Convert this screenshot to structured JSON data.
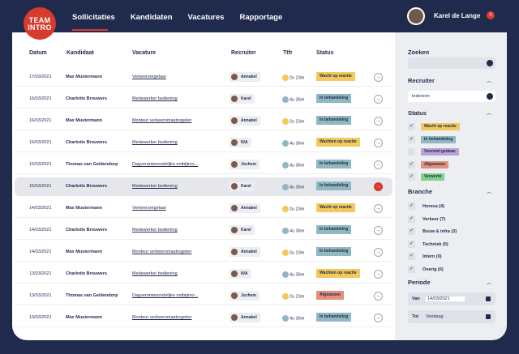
{
  "brand": {
    "line1": "TEAM",
    "line2": "INTRO"
  },
  "nav": {
    "items": [
      "Sollicitaties",
      "Kandidaten",
      "Vacatures",
      "Rapportage"
    ]
  },
  "user": {
    "name": "Karel de Lange",
    "notifications": "0"
  },
  "table": {
    "headers": {
      "datum": "Datum",
      "kandidaat": "Kandidaat",
      "vacature": "Vacature",
      "recruiter": "Recruiter",
      "ttfr": "Ttfr",
      "status": "Status"
    },
    "rows": [
      {
        "date": "17/03/2021",
        "name": "Max Mustermann",
        "job": "Verkeersregelaar",
        "rec": "Annabel",
        "ttfr": "2u 23m",
        "status": "Wacht op reactie"
      },
      {
        "date": "16/03/2021",
        "name": "Charlotte Brouwers",
        "job": "Medewerker bediening",
        "rec": "Karel",
        "ttfr": "4u 36m",
        "status": "In behandeling"
      },
      {
        "date": "16/03/2021",
        "name": "Max Mustermann",
        "job": "Monteur verkeersmaatregelen",
        "rec": "Annabel",
        "ttfr": "2u 23m",
        "status": "In behandeling"
      },
      {
        "date": "16/03/2021",
        "name": "Charlotte Brouwers",
        "job": "Medewerker bediening",
        "rec": "N/A",
        "ttfr": "4u 36m",
        "status": "Wachten op reactie"
      },
      {
        "date": "15/03/2021",
        "name": "Thomas van Geldendorp",
        "job": "Dagverantwoordelijke ontbijtres...",
        "rec": "Jochem",
        "ttfr": "4u 36m",
        "status": "In behandeling"
      },
      {
        "date": "15/03/2021",
        "name": "Charlotte Brouwers",
        "job": "Medewerker bediening",
        "rec": "Karel",
        "ttfr": "4u 36m",
        "status": "In behandeling"
      },
      {
        "date": "14/03/2021",
        "name": "Max Mustermann",
        "job": "Verkeersregelaar",
        "rec": "Annabel",
        "ttfr": "2u 23m",
        "status": "Wacht op reactie"
      },
      {
        "date": "14/03/2021",
        "name": "Charlotte Brouwers",
        "job": "Medewerker bediening",
        "rec": "Karel",
        "ttfr": "4u 36m",
        "status": "In behandeling"
      },
      {
        "date": "14/03/2021",
        "name": "Max Mustermann",
        "job": "Monteur verkeersmaatregelen",
        "rec": "Annabel",
        "ttfr": "2u 23m",
        "status": "In behandeling"
      },
      {
        "date": "13/03/2021",
        "name": "Charlotte Brouwers",
        "job": "Medewerker bediening",
        "rec": "N/A",
        "ttfr": "4u 36m",
        "status": "Wachten op reactie"
      },
      {
        "date": "13/03/2021",
        "name": "Thomas van Geldendorp",
        "job": "Dagverantwoordelijke ontbijtres...",
        "rec": "Jochem",
        "ttfr": "2u 23m",
        "status": "Afgewezen"
      },
      {
        "date": "13/03/2021",
        "name": "Max Mustermann",
        "job": "Monteur verkeersmaatregelen",
        "rec": "Annabel",
        "ttfr": "4u 36m",
        "status": "In behandeling"
      }
    ]
  },
  "filters": {
    "zoeken": "Zoeken",
    "recruiter": "Recruiter",
    "recruiter_value": "Iedereen",
    "status": "Status",
    "statuses": [
      "Wacht op reactie",
      "In behandeling",
      "Voorstel gedaan",
      "Afgewezen",
      "Verworkt"
    ],
    "branche": "Branche",
    "branches": [
      "Horeca (4)",
      "Verkeer (7)",
      "Bouw & infra (3)",
      "Techniek (0)",
      "Intern (0)",
      "Overig (0)"
    ],
    "periode": "Periode",
    "van": "Van",
    "van_value": "14/03/2021",
    "tot": "Tot",
    "tot_value": "Vandaag"
  },
  "colors": {
    "wacht": "#f2c95a",
    "behandeling": "#8fb8c0",
    "voorstel": "#b7a3d6",
    "afgewezen": "#e4907a",
    "verworkt": "#7fd18a"
  }
}
